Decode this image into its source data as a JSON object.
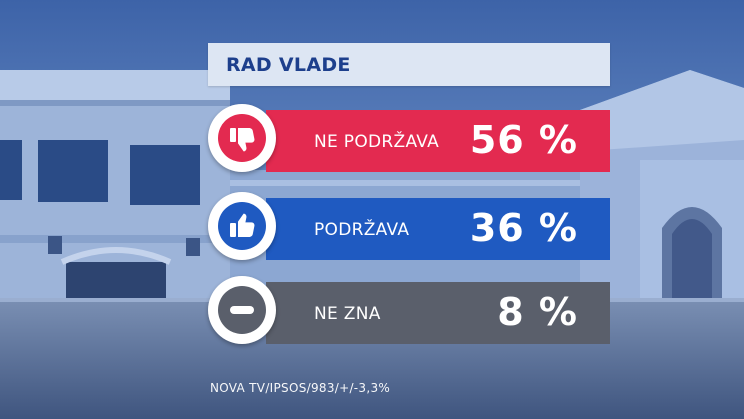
{
  "chart_data": {
    "type": "bar",
    "title": "RAD VLADE",
    "categories": [
      "NE PODRŽAVA",
      "PODRŽAVA",
      "NE ZNA"
    ],
    "values": [
      56,
      36,
      8
    ],
    "value_labels": [
      "56 %",
      "36 %",
      "8 %"
    ],
    "colors": [
      "#e32a50",
      "#1f5ac1",
      "#5a5f6b"
    ],
    "icons": [
      "thumbs-down-icon",
      "thumbs-up-icon",
      "minus-icon"
    ],
    "source": "NOVA TV/IPSOS/983/+/-3,3%"
  }
}
